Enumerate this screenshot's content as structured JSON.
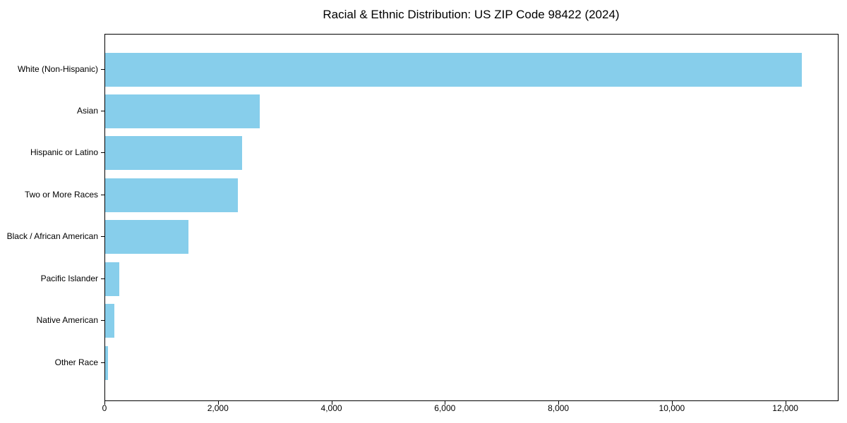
{
  "chart_data": {
    "type": "bar",
    "orientation": "horizontal",
    "title": "Racial & Ethnic Distribution: US ZIP Code 98422 (2024)",
    "categories": [
      "White (Non-Hispanic)",
      "Asian",
      "Hispanic or Latino",
      "Two or More Races",
      "Black / African American",
      "Pacific Islander",
      "Native American",
      "Other Race"
    ],
    "values": [
      12280,
      2730,
      2410,
      2340,
      1465,
      250,
      165,
      50
    ],
    "xlabel": "",
    "ylabel": "",
    "xlim": [
      0,
      12900
    ],
    "xticks": [
      0,
      2000,
      4000,
      6000,
      8000,
      10000,
      12000
    ],
    "xtick_labels": [
      "0",
      "2,000",
      "4,000",
      "6,000",
      "8,000",
      "10,000",
      "12,000"
    ],
    "bar_color": "#87CEEB",
    "spine_color": "#000000",
    "text_color": "#000000",
    "grid": false,
    "legend_position": "none"
  }
}
